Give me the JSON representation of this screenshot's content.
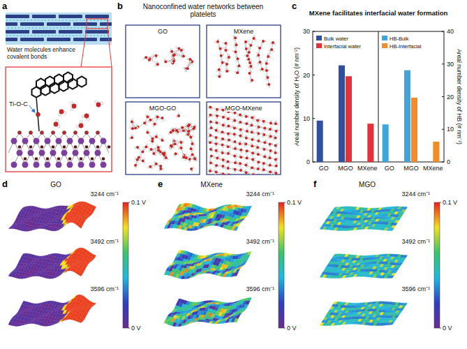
{
  "panels": {
    "a": {
      "letter": "a",
      "caption": "Water molecules enhance covalent bonds",
      "bond_label": "Ti-O-C"
    },
    "b": {
      "letter": "b",
      "title": "Nanoconfined water networks between platelets",
      "boxes": [
        "GO",
        "MXene",
        "MGO-GO",
        "MGO-MXene"
      ]
    },
    "c": {
      "letter": "c"
    },
    "d": {
      "letter": "d",
      "title": "GO",
      "wavenumbers": [
        "3244 cm⁻¹",
        "3492 cm⁻¹",
        "3596 cm⁻¹"
      ],
      "colorbar": {
        "range": [
          0,
          0.1
        ],
        "ticks": [
          {
            "value": 0.1,
            "label": "0.1 V"
          },
          {
            "value": 0,
            "label": "0 V"
          }
        ]
      }
    },
    "e": {
      "letter": "e",
      "title": "MXene",
      "wavenumbers": [
        "3244 cm⁻¹",
        "3492 cm⁻¹",
        "3596 cm⁻¹"
      ],
      "colorbar": {
        "range": [
          0,
          0.1
        ],
        "ticks": [
          {
            "value": 0.1,
            "label": "0.1 V"
          },
          {
            "value": 0,
            "label": "0 V"
          }
        ]
      }
    },
    "f": {
      "letter": "f",
      "title": "MGO",
      "wavenumbers": [
        "3244 cm⁻¹",
        "3492 cm⁻¹",
        "3596 cm⁻¹"
      ],
      "colorbar": {
        "range": [
          0,
          0.1
        ],
        "ticks": [
          {
            "value": 0.1,
            "label": "0.1 V"
          },
          {
            "value": 0,
            "label": "0 V"
          }
        ]
      }
    }
  },
  "chart_data": [
    {
      "type": "bar",
      "title": "MXene facilitates interfacial water formation",
      "categories": [
        "GO",
        "MGO",
        "MXene"
      ],
      "series": [
        {
          "name": "Bulk water",
          "color": "#2f4fa2",
          "values": [
            9.5,
            22.2,
            0
          ]
        },
        {
          "name": "Interfacial water",
          "color": "#e5323a",
          "values": [
            0,
            19.7,
            8.8
          ]
        }
      ],
      "y_label": "Areal number density of H₂O (# nm⁻²)",
      "ylim": [
        0,
        30
      ],
      "yticks": [
        0,
        10,
        20,
        30
      ],
      "legend": "upper-left"
    },
    {
      "type": "bar",
      "categories": [
        "GO",
        "MGO",
        "MXene"
      ],
      "series": [
        {
          "name": "HB-Bulk",
          "color": "#3ea6dd",
          "values": [
            11.5,
            28.1,
            0
          ]
        },
        {
          "name": "HB-Interfacial",
          "color": "#f28c28",
          "values": [
            0,
            19.7,
            6.2
          ]
        }
      ],
      "y_label": "Areal number density of HB (# nm⁻²)",
      "ylim": [
        0,
        40
      ],
      "yticks": [
        0,
        10,
        20,
        30,
        40
      ],
      "legend": "upper-left"
    }
  ]
}
